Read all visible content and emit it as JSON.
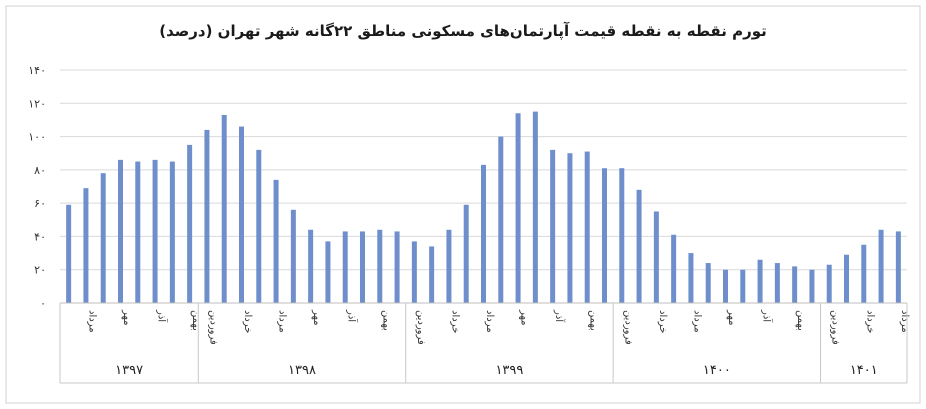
{
  "chart_data": {
    "type": "bar",
    "title": "تورم نقطه به نقطه قیمت آپارتمان‌های مسکونی مناطق ۲۲گانه شهر تهران (درصد)",
    "ylim": [
      0,
      140
    ],
    "yticks": [
      "۰",
      "۲۰",
      "۴۰",
      "۶۰",
      "۸۰",
      "۱۰۰",
      "۱۲۰",
      "۱۴۰"
    ],
    "grid": true,
    "bar_color": "#6e8fcc",
    "values": [
      59,
      69,
      78,
      86,
      85,
      86,
      85,
      95,
      104,
      113,
      106,
      92,
      74,
      56,
      44,
      37,
      43,
      43,
      44,
      43,
      37,
      34,
      44,
      59,
      83,
      100,
      114,
      115,
      92,
      90,
      91,
      81,
      81,
      68,
      55,
      41,
      30,
      24,
      20,
      20,
      26,
      24,
      22,
      20,
      23,
      29,
      35,
      44,
      43
    ],
    "category_labels": [
      {
        "index": 1,
        "text": "مرداد"
      },
      {
        "index": 3,
        "text": "مهر"
      },
      {
        "index": 5,
        "text": "آذر"
      },
      {
        "index": 7,
        "text": "بهمن"
      },
      {
        "index": 8,
        "text": "فروردین"
      },
      {
        "index": 10,
        "text": "خرداد"
      },
      {
        "index": 12,
        "text": "مرداد"
      },
      {
        "index": 14,
        "text": "مهر"
      },
      {
        "index": 16,
        "text": "آذر"
      },
      {
        "index": 18,
        "text": "بهمن"
      },
      {
        "index": 20,
        "text": "فروردین"
      },
      {
        "index": 22,
        "text": "خرداد"
      },
      {
        "index": 24,
        "text": "مرداد"
      },
      {
        "index": 26,
        "text": "مهر"
      },
      {
        "index": 28,
        "text": "آذر"
      },
      {
        "index": 30,
        "text": "بهمن"
      },
      {
        "index": 32,
        "text": "فروردین"
      },
      {
        "index": 34,
        "text": "خرداد"
      },
      {
        "index": 36,
        "text": "مرداد"
      },
      {
        "index": 38,
        "text": "مهر"
      },
      {
        "index": 40,
        "text": "آذر"
      },
      {
        "index": 42,
        "text": "بهمن"
      },
      {
        "index": 44,
        "text": "فروردین"
      },
      {
        "index": 46,
        "text": "خرداد"
      },
      {
        "index": 48,
        "text": "مرداد"
      }
    ],
    "year_groups": [
      {
        "label": "۱۳۹۷",
        "start": 0,
        "end": 7
      },
      {
        "label": "۱۳۹۸",
        "start": 8,
        "end": 19
      },
      {
        "label": "۱۳۹۹",
        "start": 20,
        "end": 31
      },
      {
        "label": "۱۴۰۰",
        "start": 32,
        "end": 43
      },
      {
        "label": "۱۴۰۱",
        "start": 44,
        "end": 48
      }
    ]
  }
}
